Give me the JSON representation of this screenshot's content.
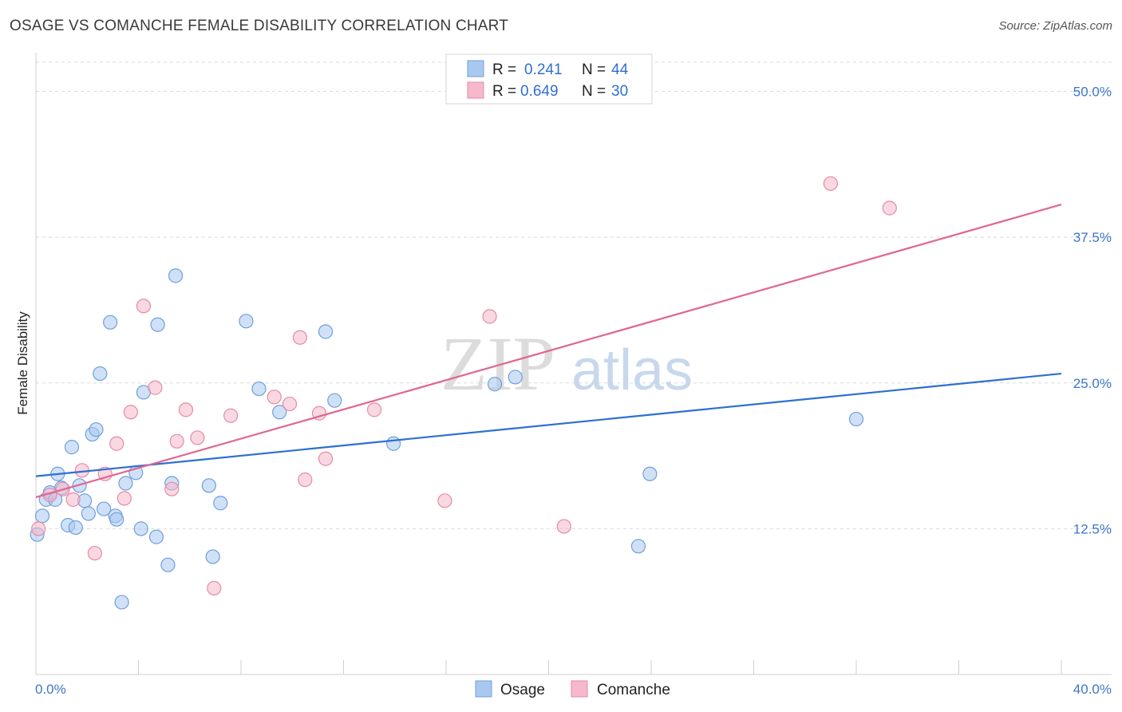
{
  "header": {
    "title": "OSAGE VS COMANCHE FEMALE DISABILITY CORRELATION CHART",
    "source": "Source: ZipAtlas.com"
  },
  "watermark": {
    "zip": "ZIP",
    "atlas": "atlas"
  },
  "legend": {
    "rows": [
      {
        "r_label": "R = ",
        "r_value": "0.241",
        "n_label": "N = ",
        "n_value": "44",
        "color": "#a9c8f0"
      },
      {
        "r_label": "R = ",
        "r_value": "0.649",
        "n_label": "N = ",
        "n_value": "30",
        "color": "#f6b8cb"
      }
    ]
  },
  "colors": {
    "osage_fill": "#a9c8f0",
    "osage_stroke": "#6f9fdc",
    "osage_line": "#2e6fd1",
    "comanche_fill": "#f6b8cb",
    "comanche_stroke": "#e68aa7",
    "comanche_line": "#e06690",
    "grid": "#d9d9d9",
    "axis_text": "#3d77c9"
  },
  "chart_data": {
    "type": "scatter",
    "title": "OSAGE VS COMANCHE FEMALE DISABILITY CORRELATION CHART",
    "xlabel": "",
    "ylabel": "Female Disability",
    "xlim": [
      0,
      40
    ],
    "ylim": [
      0,
      52.5
    ],
    "x_tick_labels": [
      "0.0%",
      "40.0%"
    ],
    "y_ticks": [
      12.5,
      25.0,
      37.5,
      50.0
    ],
    "y_tick_labels": [
      "12.5%",
      "25.0%",
      "37.5%",
      "50.0%"
    ],
    "grid": true,
    "legend_position": "top-center",
    "series": [
      {
        "name": "Osage",
        "r": 0.241,
        "n": 44,
        "trend": {
          "x": [
            0,
            40
          ],
          "y": [
            17.0,
            25.8
          ]
        },
        "points": [
          [
            0.05,
            12.0
          ],
          [
            0.25,
            13.6
          ],
          [
            0.4,
            15.0
          ],
          [
            0.55,
            15.6
          ],
          [
            0.75,
            15.0
          ],
          [
            0.85,
            17.2
          ],
          [
            1.0,
            16.0
          ],
          [
            1.25,
            12.8
          ],
          [
            1.4,
            19.5
          ],
          [
            1.55,
            12.6
          ],
          [
            1.7,
            16.2
          ],
          [
            1.9,
            14.9
          ],
          [
            2.05,
            13.8
          ],
          [
            2.2,
            20.6
          ],
          [
            2.35,
            21.0
          ],
          [
            2.5,
            25.8
          ],
          [
            2.65,
            14.2
          ],
          [
            2.9,
            30.2
          ],
          [
            3.1,
            13.6
          ],
          [
            3.15,
            13.3
          ],
          [
            3.35,
            6.2
          ],
          [
            3.5,
            16.4
          ],
          [
            3.9,
            17.3
          ],
          [
            4.1,
            12.5
          ],
          [
            4.2,
            24.2
          ],
          [
            4.7,
            11.8
          ],
          [
            4.75,
            30.0
          ],
          [
            5.15,
            9.4
          ],
          [
            5.3,
            16.4
          ],
          [
            5.45,
            34.2
          ],
          [
            6.75,
            16.2
          ],
          [
            6.9,
            10.1
          ],
          [
            7.2,
            14.7
          ],
          [
            8.2,
            30.3
          ],
          [
            8.7,
            24.5
          ],
          [
            9.5,
            22.5
          ],
          [
            11.3,
            29.4
          ],
          [
            11.65,
            23.5
          ],
          [
            13.95,
            19.8
          ],
          [
            17.9,
            24.9
          ],
          [
            18.7,
            25.5
          ],
          [
            23.5,
            11.0
          ],
          [
            23.95,
            17.2
          ],
          [
            32.0,
            21.9
          ]
        ]
      },
      {
        "name": "Comanche",
        "r": 0.649,
        "n": 30,
        "trend": {
          "x": [
            0,
            40
          ],
          "y": [
            15.2,
            40.3
          ]
        },
        "points": [
          [
            0.1,
            12.5
          ],
          [
            0.55,
            15.4
          ],
          [
            1.05,
            15.9
          ],
          [
            1.45,
            15.0
          ],
          [
            1.8,
            17.5
          ],
          [
            2.3,
            10.4
          ],
          [
            2.7,
            17.2
          ],
          [
            3.15,
            19.8
          ],
          [
            3.45,
            15.1
          ],
          [
            3.7,
            22.5
          ],
          [
            4.2,
            31.6
          ],
          [
            4.65,
            24.6
          ],
          [
            5.3,
            15.9
          ],
          [
            5.5,
            20.0
          ],
          [
            5.85,
            22.7
          ],
          [
            6.3,
            20.3
          ],
          [
            6.95,
            7.4
          ],
          [
            7.6,
            22.2
          ],
          [
            9.3,
            23.8
          ],
          [
            9.9,
            23.2
          ],
          [
            10.3,
            28.9
          ],
          [
            10.5,
            16.7
          ],
          [
            11.05,
            22.4
          ],
          [
            11.3,
            18.5
          ],
          [
            13.2,
            22.7
          ],
          [
            15.95,
            14.9
          ],
          [
            17.7,
            30.7
          ],
          [
            20.6,
            12.7
          ],
          [
            31.0,
            42.1
          ],
          [
            33.3,
            40.0
          ]
        ]
      }
    ]
  }
}
